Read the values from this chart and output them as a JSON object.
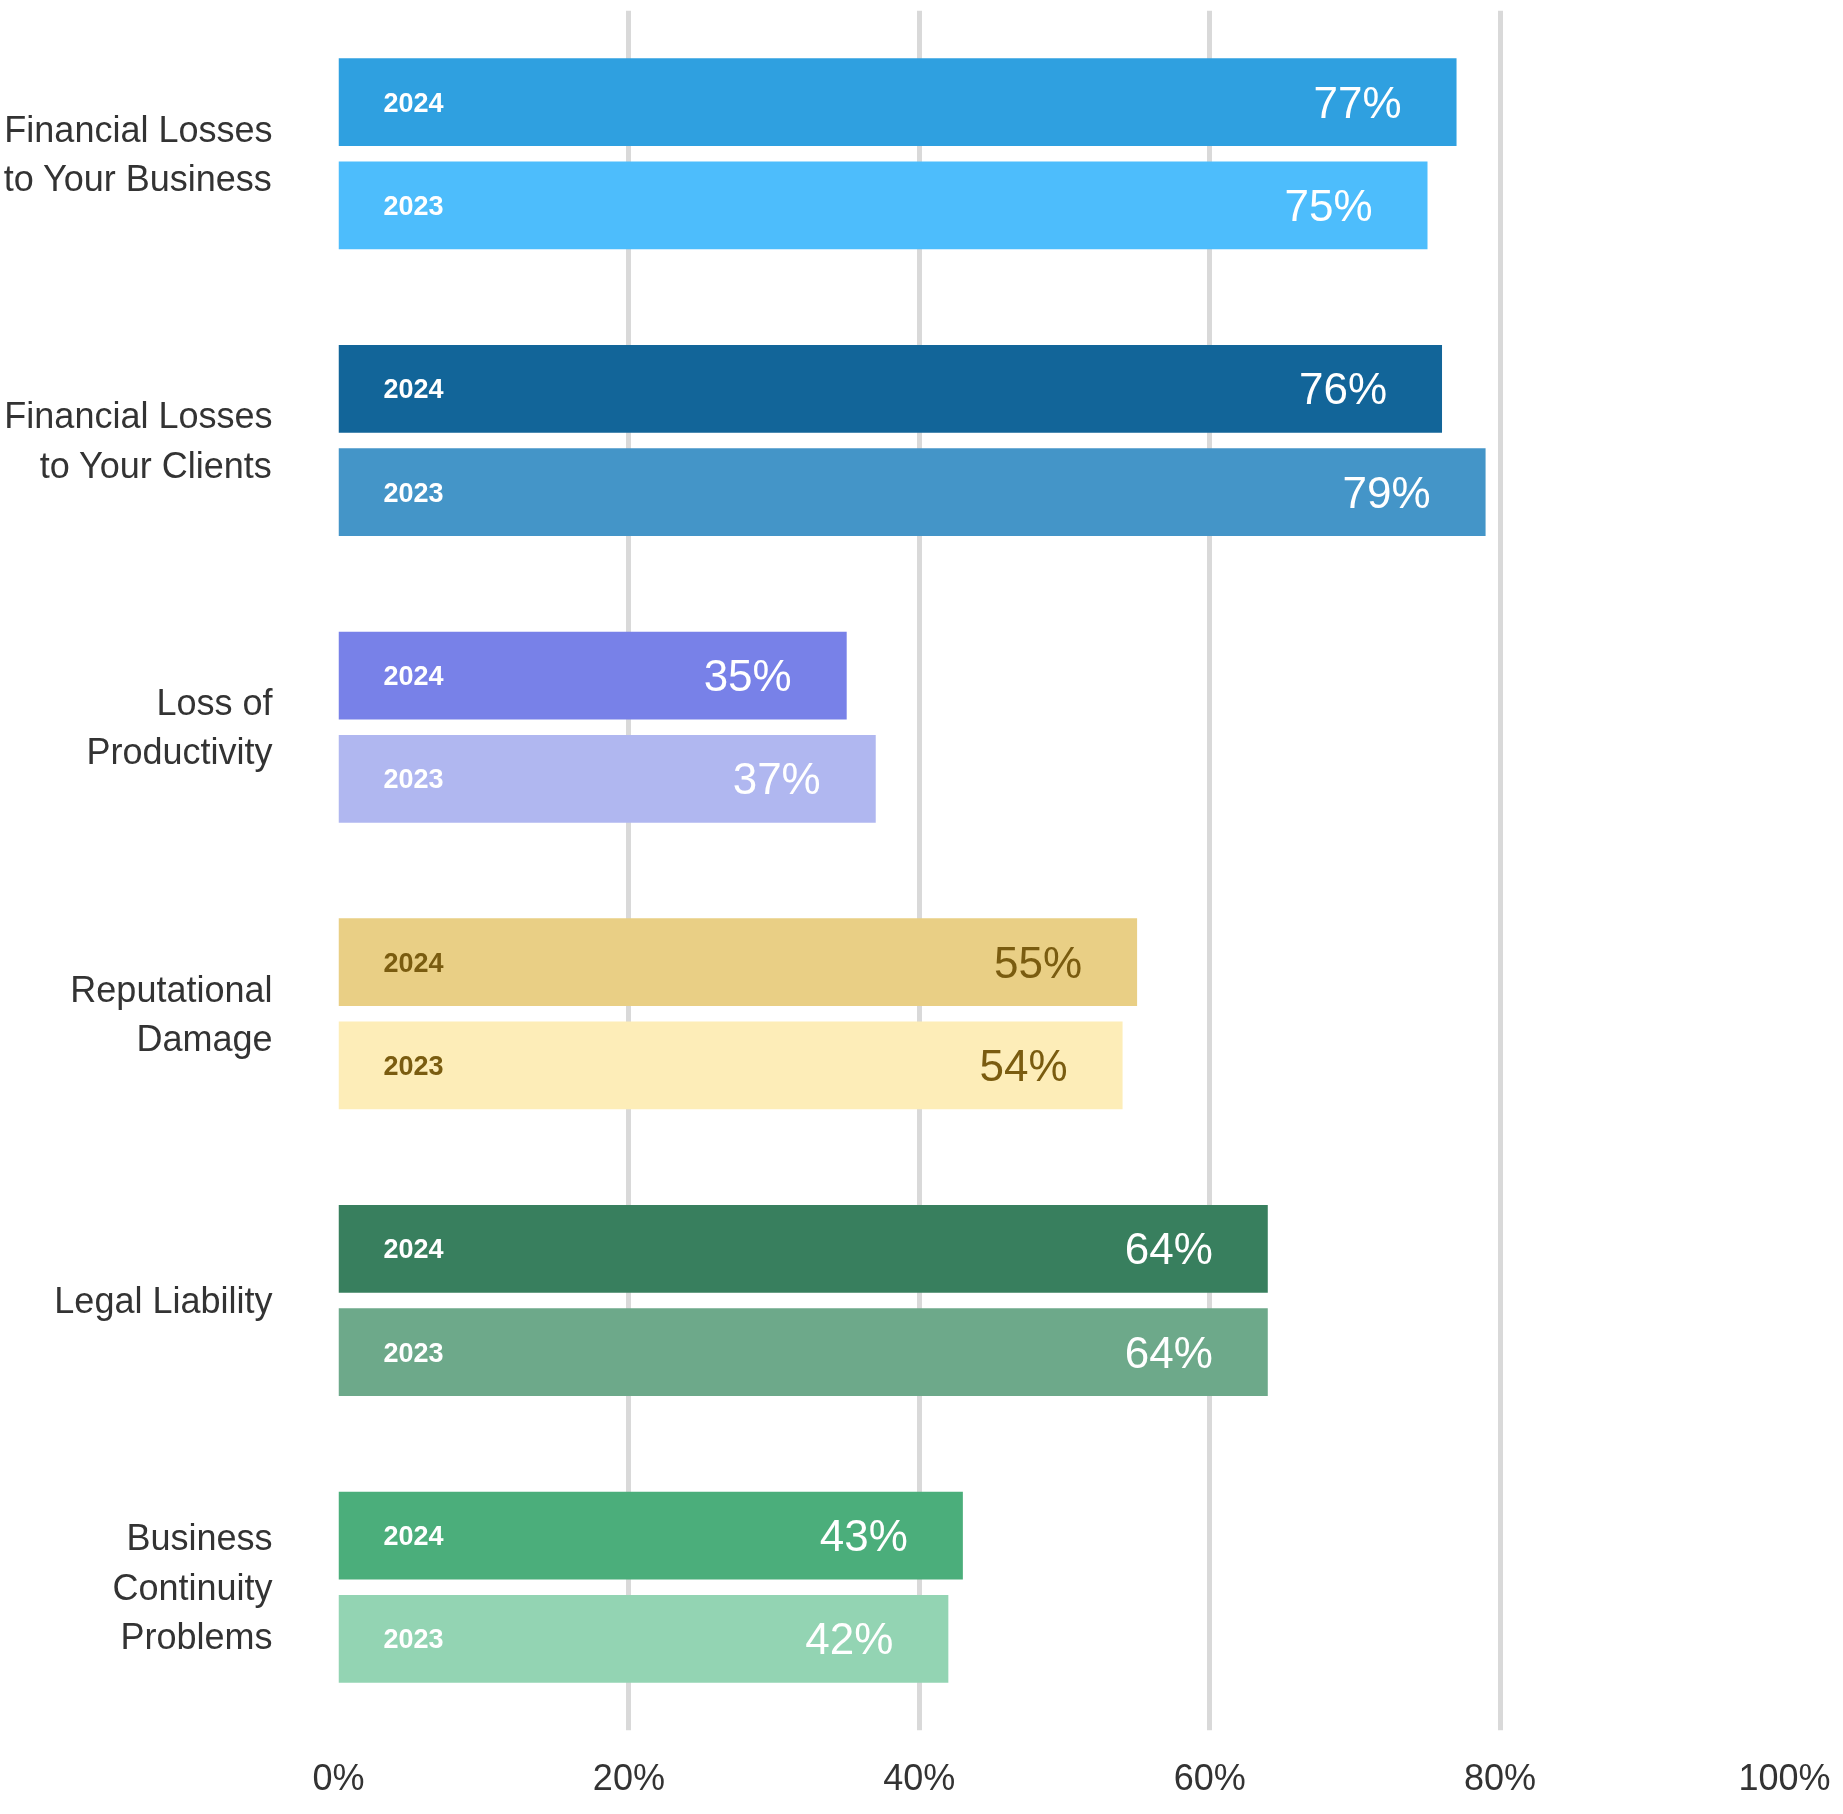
{
  "chart_data": {
    "type": "bar",
    "orientation": "horizontal",
    "categories": [
      "Financial Losses to Your Business",
      "Financial Losses to Your Clients",
      "Loss of Productivity",
      "Reputational Damage",
      "Legal Liability",
      "Business Continuity Problems"
    ],
    "series": [
      {
        "name": "2024",
        "colors": [
          "#2fa0e0",
          "#126599",
          "#7881e8",
          "#e9cf85",
          "#387f5e",
          "#4bae7b"
        ],
        "values": [
          77,
          76,
          35,
          55,
          64,
          43
        ],
        "value_labels": [
          "77%",
          "76%",
          "35%",
          "55%",
          "64%",
          "43%"
        ]
      },
      {
        "name": "2023",
        "colors": [
          "#4dbdfc",
          "#4495c8",
          "#b0b7f0",
          "#fdedb8",
          "#6da98a",
          "#93d4b3"
        ],
        "values": [
          75,
          79,
          37,
          54,
          64,
          42
        ],
        "value_labels": [
          "75%",
          "79%",
          "37%",
          "54%",
          "64%",
          "42%"
        ]
      }
    ],
    "xlim": [
      0,
      100
    ],
    "xticks": [
      {
        "value": 0,
        "label": "0%"
      },
      {
        "value": 20,
        "label": "20%"
      },
      {
        "value": 40,
        "label": "40%"
      },
      {
        "value": 60,
        "label": "60%"
      },
      {
        "value": 80,
        "label": "80%"
      },
      {
        "value": 100,
        "label": "100%"
      }
    ],
    "grid": "x"
  }
}
